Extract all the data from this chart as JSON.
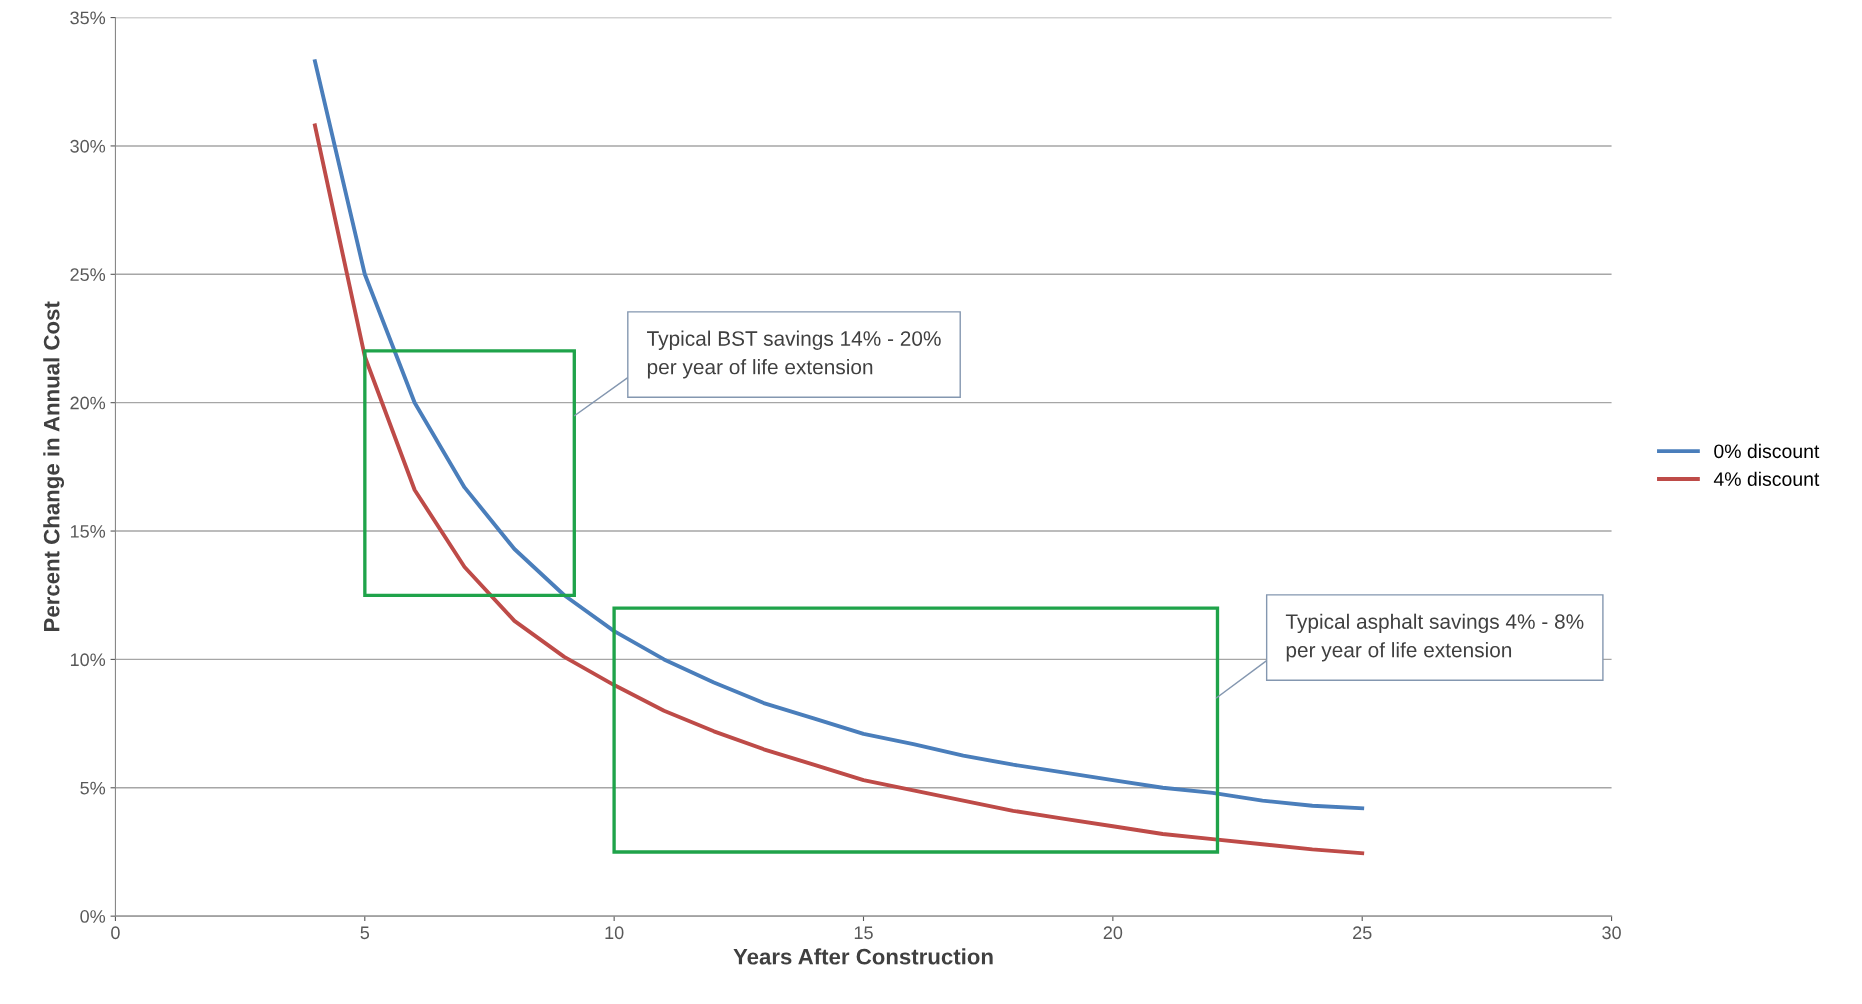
{
  "chart_data": {
    "type": "line",
    "xlabel": "Years After Construction",
    "ylabel": "Percent Change in Annual Cost",
    "xlim": [
      0,
      30
    ],
    "xticks": [
      0,
      5,
      10,
      15,
      20,
      25,
      30
    ],
    "ylim": [
      0,
      35
    ],
    "yticks": [
      {
        "value": 0,
        "label": "0%"
      },
      {
        "value": 5,
        "label": "5%"
      },
      {
        "value": 10,
        "label": "10%"
      },
      {
        "value": 15,
        "label": "15%"
      },
      {
        "value": 20,
        "label": "20%"
      },
      {
        "value": 25,
        "label": "25%"
      },
      {
        "value": 30,
        "label": "30%"
      },
      {
        "value": 35,
        "label": "35%"
      }
    ],
    "grid": "y",
    "legend": "right",
    "marker": "none",
    "line_style": "solid",
    "x": [
      4,
      5,
      6,
      7,
      8,
      9,
      10,
      11,
      12,
      13,
      14,
      15,
      16,
      17,
      18,
      19,
      20,
      21,
      22,
      23,
      24,
      25
    ],
    "series": [
      {
        "name": "0% discount",
        "color": "#4a7ebb",
        "values": [
          33.3,
          25,
          20,
          16.7,
          14.3,
          12.5,
          11.1,
          10,
          9.1,
          8.3,
          7.7,
          7.1,
          6.7,
          6.25,
          5.9,
          5.6,
          5.3,
          5,
          4.8,
          4.5,
          4.3,
          4.2
        ]
      },
      {
        "name": "4% discount",
        "color": "#be4b48",
        "values": [
          30.8,
          21.8,
          16.6,
          13.6,
          11.5,
          10.1,
          9.0,
          8.0,
          7.2,
          6.5,
          5.9,
          5.3,
          4.9,
          4.5,
          4.1,
          3.8,
          3.5,
          3.2,
          3.0,
          2.8,
          2.6,
          2.45
        ]
      }
    ],
    "annotations": [
      "Typical BST savings 14% - 20%\nper year of life extension",
      "Typical asphalt savings 4% - 8%\nper year of life extension"
    ]
  }
}
